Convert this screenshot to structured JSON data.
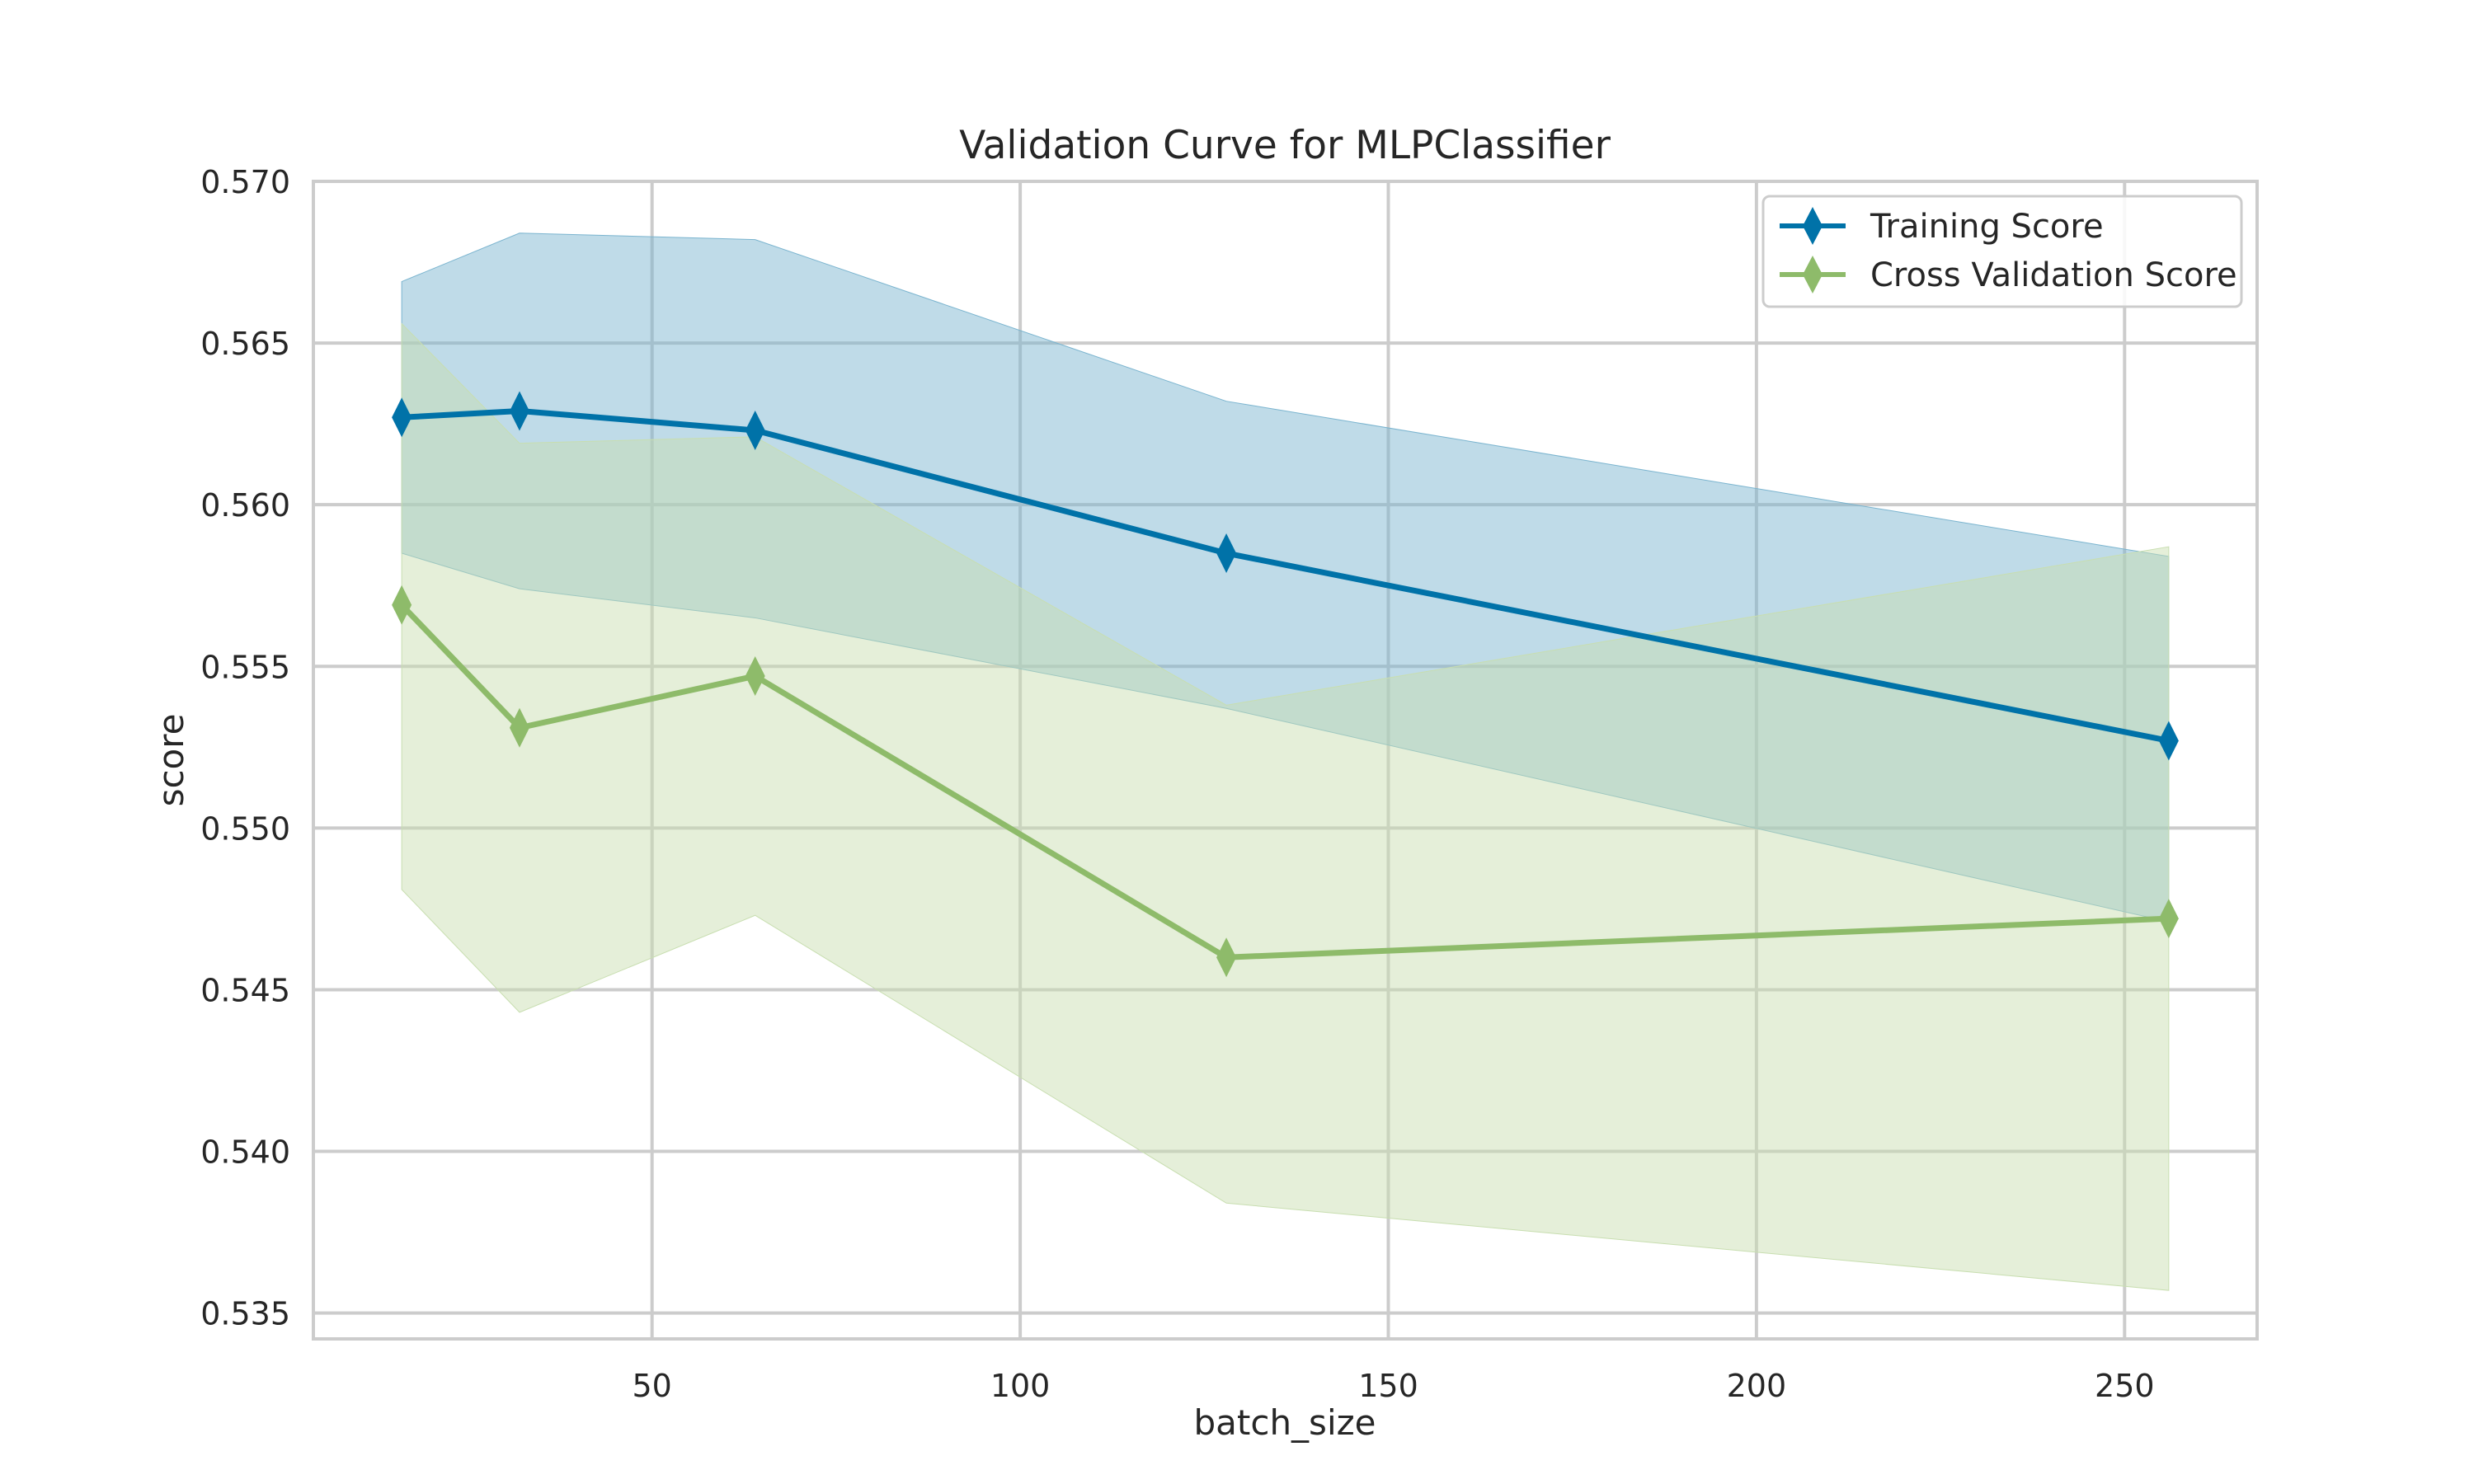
{
  "chart_data": {
    "type": "line",
    "title": "Validation Curve for MLPClassifier",
    "xlabel": "batch_size",
    "ylabel": "score",
    "xlim": [
      4,
      268
    ],
    "ylim": [
      0.5342,
      0.57
    ],
    "xticks": [
      50,
      100,
      150,
      200,
      250
    ],
    "yticks": [
      0.535,
      0.54,
      0.545,
      0.55,
      0.555,
      0.56,
      0.565,
      0.57
    ],
    "yticks_labels": [
      "0.535",
      "0.540",
      "0.545",
      "0.550",
      "0.555",
      "0.560",
      "0.565",
      "0.570"
    ],
    "grid": true,
    "legend_position": "top-right",
    "x": [
      16,
      32,
      64,
      128,
      256
    ],
    "series": [
      {
        "name": "Training Score",
        "color": "#0072a8",
        "band_color": "#7ab4cf",
        "marker": "diamond",
        "values": [
          0.5627,
          0.5629,
          0.5623,
          0.5585,
          0.5527
        ],
        "upper": [
          0.5669,
          0.5684,
          0.5682,
          0.5632,
          0.5584
        ],
        "lower": [
          0.5585,
          0.5574,
          0.5565,
          0.5537,
          0.5471
        ]
      },
      {
        "name": "Cross Validation Score",
        "color": "#8ebb6a",
        "band_color": "#c8deb0",
        "marker": "diamond",
        "values": [
          0.5569,
          0.5531,
          0.5547,
          0.546,
          0.5472
        ],
        "upper": [
          0.5656,
          0.5619,
          0.5621,
          0.5538,
          0.5587
        ],
        "lower": [
          0.5481,
          0.5443,
          0.5473,
          0.5384,
          0.5357
        ]
      }
    ]
  }
}
